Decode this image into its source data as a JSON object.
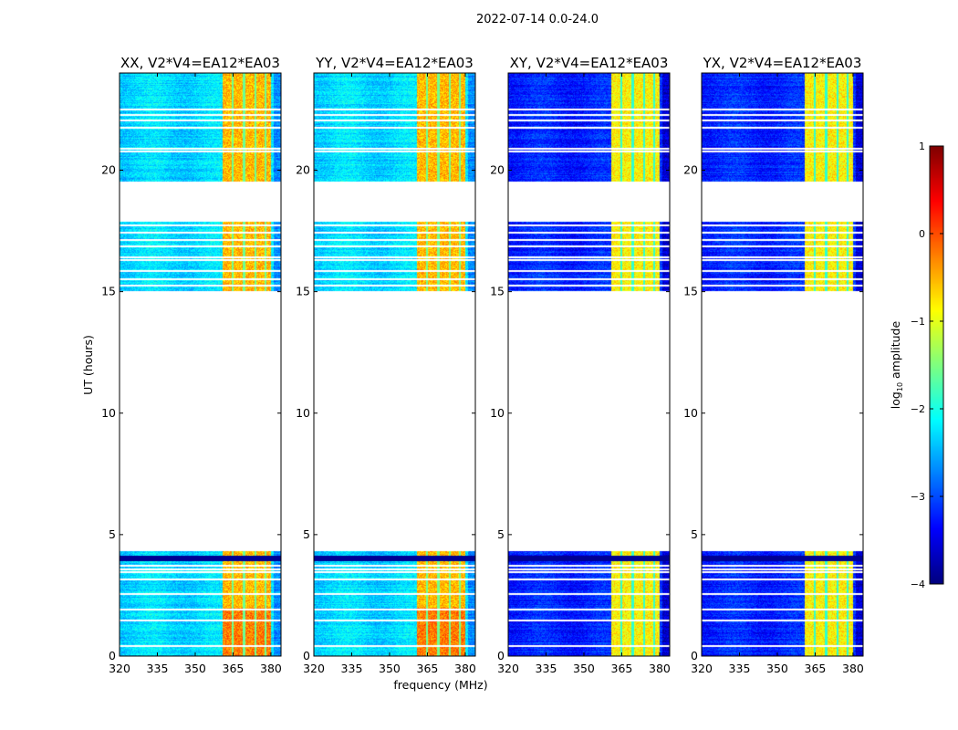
{
  "chart_data": {
    "type": "heatmap",
    "suptitle": "2022-07-14 0.0-24.0",
    "xlabel": "frequency (MHz)",
    "ylabel": "UT (hours)",
    "xlim": [
      320,
      384
    ],
    "ylim": [
      0,
      24
    ],
    "xticks": [
      320,
      335,
      350,
      365,
      380
    ],
    "yticks": [
      0,
      5,
      10,
      15,
      20
    ],
    "panels": [
      {
        "title": "XX, V2*V4=EA12*EA03",
        "background_log_amp": -2.3,
        "band_log_amp": -0.6
      },
      {
        "title": "YY, V2*V4=EA12*EA03",
        "background_log_amp": -2.3,
        "band_log_amp": -0.6
      },
      {
        "title": "XY, V2*V4=EA12*EA03",
        "background_log_amp": -3.2,
        "band_log_amp": -0.9
      },
      {
        "title": "YX, V2*V4=EA12*EA03",
        "background_log_amp": -3.2,
        "band_log_amp": -0.9
      }
    ],
    "bright_band_mhz": [
      360.5,
      380
    ],
    "band_separators_mhz": [
      364.7,
      369.2,
      373.6,
      377.8
    ],
    "data_segments_hours": [
      [
        0,
        4.35
      ],
      [
        15.05,
        17.9
      ],
      [
        19.55,
        24
      ]
    ],
    "flagged_rows_hours": [
      0.45,
      1.5,
      1.95,
      2.6,
      3.2,
      3.5,
      3.62,
      3.74,
      15.3,
      15.55,
      15.9,
      16.35,
      16.45,
      16.9,
      17.15,
      17.45,
      17.75,
      20.8,
      20.92,
      21.8,
      22.1,
      22.3,
      22.55
    ],
    "dark_rows_hours": [
      4.0,
      4.1
    ],
    "colorbar": {
      "label": "log",
      "label_sub": "10",
      "label_rest": " amplitude",
      "colormap": "jet",
      "range": [
        -4,
        1
      ],
      "ticks": [
        "1",
        "0",
        "−1",
        "−2",
        "−3",
        "−4"
      ]
    }
  }
}
